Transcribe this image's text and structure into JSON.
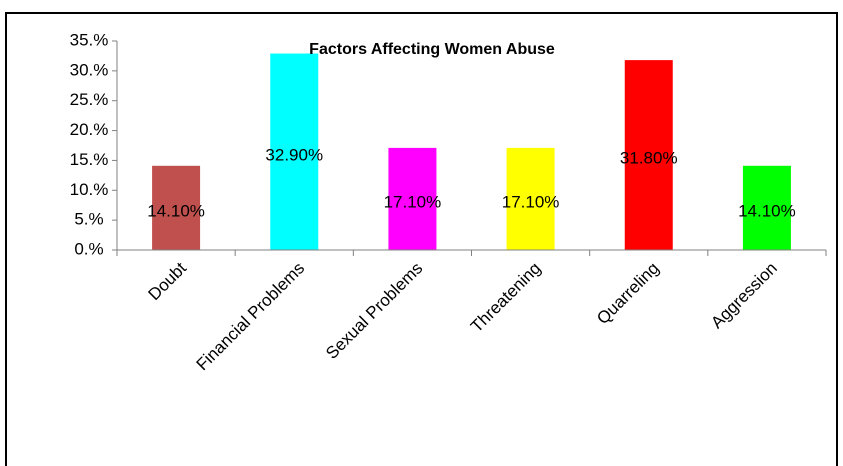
{
  "chart_data": {
    "type": "bar",
    "title": "Factors Affecting Women Abuse",
    "categories": [
      "Doubt",
      "Financial Problems",
      "Sexual Problems",
      "Threatening",
      "Quarreling",
      "Aggression"
    ],
    "values": [
      14.1,
      32.9,
      17.1,
      17.1,
      31.8,
      14.1
    ],
    "value_labels": [
      "14.10%",
      "32.90%",
      "17.10%",
      "17.10%",
      "31.80%",
      "14.10%"
    ],
    "colors": [
      "#c0504d",
      "#00ffff",
      "#ff00ff",
      "#ffff00",
      "#ff0000",
      "#00ff00"
    ],
    "ylim": [
      0,
      35
    ],
    "yticks": [
      {
        "value": 0,
        "label": "0.%"
      },
      {
        "value": 5,
        "label": "5.%"
      },
      {
        "value": 10,
        "label": "10.%"
      },
      {
        "value": 15,
        "label": "15.%"
      },
      {
        "value": 20,
        "label": "20.%"
      },
      {
        "value": 25,
        "label": "25.%"
      },
      {
        "value": 30,
        "label": "30.%"
      },
      {
        "value": 35,
        "label": "35.%"
      }
    ],
    "grid": false
  }
}
